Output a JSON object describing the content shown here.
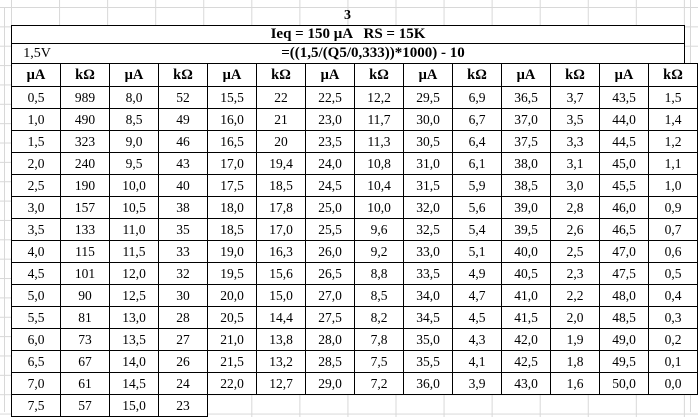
{
  "colors": {
    "background": "#ffffff",
    "table_border": "#000000",
    "sheet_gridline": "#d8d8d8",
    "text": "#000000"
  },
  "sheet": {
    "page_number": "3",
    "params_line": "Ieq = 150 μA   RS = 15K",
    "voltage_label": "1,5V",
    "formula": "=((1,5/(Q5/0,333))*1000) - 10"
  },
  "table": {
    "column_headers": [
      "μA",
      "kΩ",
      "μA",
      "kΩ",
      "μA",
      "kΩ",
      "μA",
      "kΩ",
      "μA",
      "kΩ",
      "μA",
      "kΩ",
      "μA",
      "kΩ"
    ],
    "rows": [
      [
        "0,5",
        "989",
        "8,0",
        "52",
        "15,5",
        "22",
        "22,5",
        "12,2",
        "29,5",
        "6,9",
        "36,5",
        "3,7",
        "43,5",
        "1,5"
      ],
      [
        "1,0",
        "490",
        "8,5",
        "49",
        "16,0",
        "21",
        "23,0",
        "11,7",
        "30,0",
        "6,7",
        "37,0",
        "3,5",
        "44,0",
        "1,4"
      ],
      [
        "1,5",
        "323",
        "9,0",
        "46",
        "16,5",
        "20",
        "23,5",
        "11,3",
        "30,5",
        "6,4",
        "37,5",
        "3,3",
        "44,5",
        "1,2"
      ],
      [
        "2,0",
        "240",
        "9,5",
        "43",
        "17,0",
        "19,4",
        "24,0",
        "10,8",
        "31,0",
        "6,1",
        "38,0",
        "3,1",
        "45,0",
        "1,1"
      ],
      [
        "2,5",
        "190",
        "10,0",
        "40",
        "17,5",
        "18,5",
        "24,5",
        "10,4",
        "31,5",
        "5,9",
        "38,5",
        "3,0",
        "45,5",
        "1,0"
      ],
      [
        "3,0",
        "157",
        "10,5",
        "38",
        "18,0",
        "17,8",
        "25,0",
        "10,0",
        "32,0",
        "5,6",
        "39,0",
        "2,8",
        "46,0",
        "0,9"
      ],
      [
        "3,5",
        "133",
        "11,0",
        "35",
        "18,5",
        "17,0",
        "25,5",
        "9,6",
        "32,5",
        "5,4",
        "39,5",
        "2,6",
        "46,5",
        "0,7"
      ],
      [
        "4,0",
        "115",
        "11,5",
        "33",
        "19,0",
        "16,3",
        "26,0",
        "9,2",
        "33,0",
        "5,1",
        "40,0",
        "2,5",
        "47,0",
        "0,6"
      ],
      [
        "4,5",
        "101",
        "12,0",
        "32",
        "19,5",
        "15,6",
        "26,5",
        "8,8",
        "33,5",
        "4,9",
        "40,5",
        "2,3",
        "47,5",
        "0,5"
      ],
      [
        "5,0",
        "90",
        "12,5",
        "30",
        "20,0",
        "15,0",
        "27,0",
        "8,5",
        "34,0",
        "4,7",
        "41,0",
        "2,2",
        "48,0",
        "0,4"
      ],
      [
        "5,5",
        "81",
        "13,0",
        "28",
        "20,5",
        "14,4",
        "27,5",
        "8,2",
        "34,5",
        "4,5",
        "41,5",
        "2,0",
        "48,5",
        "0,3"
      ],
      [
        "6,0",
        "73",
        "13,5",
        "27",
        "21,0",
        "13,8",
        "28,0",
        "7,8",
        "35,0",
        "4,3",
        "42,0",
        "1,9",
        "49,0",
        "0,2"
      ],
      [
        "6,5",
        "67",
        "14,0",
        "26",
        "21,5",
        "13,2",
        "28,5",
        "7,5",
        "35,5",
        "4,1",
        "42,5",
        "1,8",
        "49,5",
        "0,1"
      ],
      [
        "7,0",
        "61",
        "14,5",
        "24",
        "22,0",
        "12,7",
        "29,0",
        "7,2",
        "36,0",
        "3,9",
        "43,0",
        "1,6",
        "50,0",
        "0,0"
      ],
      [
        "7,5",
        "57",
        "15,0",
        "23"
      ]
    ]
  }
}
